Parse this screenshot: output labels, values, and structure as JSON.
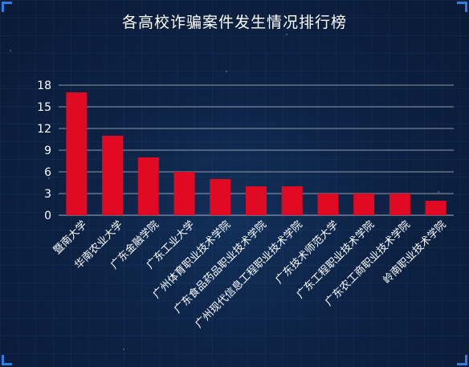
{
  "chart_data": {
    "type": "bar",
    "title": "各高校诈骗案件发生情况排行榜",
    "categories": [
      "暨南大学",
      "华南农业大学",
      "广东金融学院",
      "广东工业大学",
      "广州体育职业技术学院",
      "广东食品药品职业技术学院",
      "广州现代信息工程职业技术学院",
      "广东技术师范大学",
      "广东工程职业技术学院",
      "广东农工商职业技术学院",
      "岭南职业技术学院"
    ],
    "values": [
      17,
      11,
      8,
      6,
      5,
      4,
      4,
      3,
      3,
      3,
      2
    ],
    "ylim": [
      0,
      18
    ],
    "yticks": [
      0,
      3,
      6,
      9,
      12,
      15,
      18
    ],
    "xlabel": "",
    "ylabel": "",
    "grid": true,
    "bar_color": "#e00a22",
    "background_color": "#0d2244",
    "accent_color": "#2f7de1"
  }
}
